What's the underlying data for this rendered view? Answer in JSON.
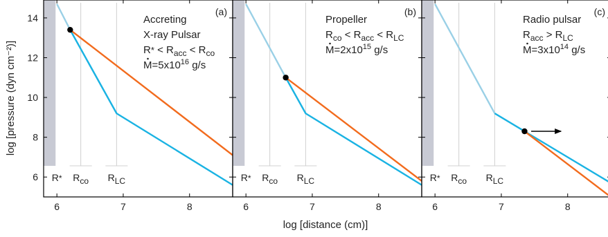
{
  "chart_data": {
    "type": "line",
    "shared": {
      "xlabel": "log [distance (cm)]",
      "ylabel": "log [pressure (dyn cm⁻²)]",
      "xlim": [
        5.8,
        8.65
      ],
      "ylim": [
        5.0,
        14.9
      ],
      "xticks": [
        6,
        7,
        8
      ],
      "yticks": [
        6,
        8,
        10,
        12,
        14
      ],
      "grid": false,
      "stellar_surface_band_x": [
        5.8,
        5.98
      ],
      "markers": [
        {
          "label": "R",
          "sub": "*",
          "x": 6.0
        },
        {
          "label": "R",
          "sub": "co",
          "x": 6.36
        },
        {
          "label": "R",
          "sub": "LC",
          "x": 6.9
        }
      ],
      "colors": {
        "band": "#c8cad4",
        "marker_line": "#d0d0d0",
        "light_blue": "#9ad0e6",
        "blue": "#1ab3e3",
        "orange": "#f26b1d",
        "dot": "#000000"
      }
    },
    "panels": [
      {
        "label": "(a)",
        "annotation": [
          {
            "main": "Accreting"
          },
          {
            "main": "X-ray Pulsar"
          },
          {
            "parts": [
              {
                "t": "R"
              },
              {
                "t": "*",
                "sub": true
              },
              {
                "t": " < R"
              },
              {
                "t": "acc",
                "sub": true
              },
              {
                "t": " < R"
              },
              {
                "t": "co",
                "sub": true
              }
            ]
          },
          {
            "parts": [
              {
                "t": "M",
                "dot": true
              },
              {
                "t": "=5x10"
              },
              {
                "t": "16",
                "sup": true
              },
              {
                "t": " g/s"
              }
            ]
          }
        ],
        "series": [
          {
            "role": "magnetic-pressure-inner",
            "color": "#9ad0e6",
            "x": [
              6.0,
              6.2,
              6.9
            ],
            "y": [
              14.7,
              13.4,
              9.2
            ]
          },
          {
            "role": "magnetic-pressure",
            "color": "#1ab3e3",
            "x": [
              6.2,
              6.9,
              8.65
            ],
            "y": [
              13.4,
              9.2,
              5.6
            ]
          },
          {
            "role": "ram-pressure",
            "color": "#f26b1d",
            "x": [
              6.2,
              8.65
            ],
            "y": [
              13.4,
              7.1
            ]
          }
        ],
        "point": {
          "x": 6.2,
          "y": 13.4
        },
        "arrow": null
      },
      {
        "label": "(b)",
        "annotation": [
          {
            "main": "Propeller"
          },
          {
            "parts": [
              {
                "t": "R"
              },
              {
                "t": "co",
                "sub": true
              },
              {
                "t": " < R"
              },
              {
                "t": "acc",
                "sub": true
              },
              {
                "t": " < R"
              },
              {
                "t": "LC",
                "sub": true
              }
            ]
          },
          {
            "parts": [
              {
                "t": "M",
                "dot": true
              },
              {
                "t": "=2x10"
              },
              {
                "t": "15",
                "sup": true
              },
              {
                "t": " g/s"
              }
            ]
          }
        ],
        "series": [
          {
            "role": "magnetic-pressure-inner",
            "color": "#9ad0e6",
            "x": [
              6.0,
              6.6,
              6.9
            ],
            "y": [
              14.7,
              11.0,
              9.2
            ]
          },
          {
            "role": "magnetic-pressure",
            "color": "#1ab3e3",
            "x": [
              6.6,
              6.9,
              8.65
            ],
            "y": [
              11.0,
              9.2,
              5.6
            ]
          },
          {
            "role": "ram-pressure",
            "color": "#f26b1d",
            "x": [
              6.6,
              8.65
            ],
            "y": [
              11.0,
              5.8
            ]
          }
        ],
        "point": {
          "x": 6.6,
          "y": 11.0
        },
        "arrow": null
      },
      {
        "label": "(c)",
        "annotation": [
          {
            "main": "Radio pulsar"
          },
          {
            "parts": [
              {
                "t": "R"
              },
              {
                "t": "acc",
                "sub": true
              },
              {
                "t": " > R"
              },
              {
                "t": "LC",
                "sub": true
              }
            ]
          },
          {
            "parts": [
              {
                "t": "M",
                "dot": true
              },
              {
                "t": "=3x10"
              },
              {
                "t": "14",
                "sup": true
              },
              {
                "t": " g/s"
              }
            ]
          }
        ],
        "series": [
          {
            "role": "magnetic-pressure-inner",
            "color": "#9ad0e6",
            "x": [
              6.0,
              6.9
            ],
            "y": [
              14.7,
              9.2
            ]
          },
          {
            "role": "magnetic-pressure",
            "color": "#1ab3e3",
            "x": [
              6.9,
              8.65
            ],
            "y": [
              9.2,
              5.7
            ]
          },
          {
            "role": "ram-pressure",
            "color": "#f26b1d",
            "x": [
              7.35,
              8.65
            ],
            "y": [
              8.3,
              5.0
            ]
          }
        ],
        "point": {
          "x": 7.35,
          "y": 8.3
        },
        "arrow": {
          "from_x": 7.45,
          "to_x": 7.9,
          "y": 8.3
        }
      }
    ]
  }
}
